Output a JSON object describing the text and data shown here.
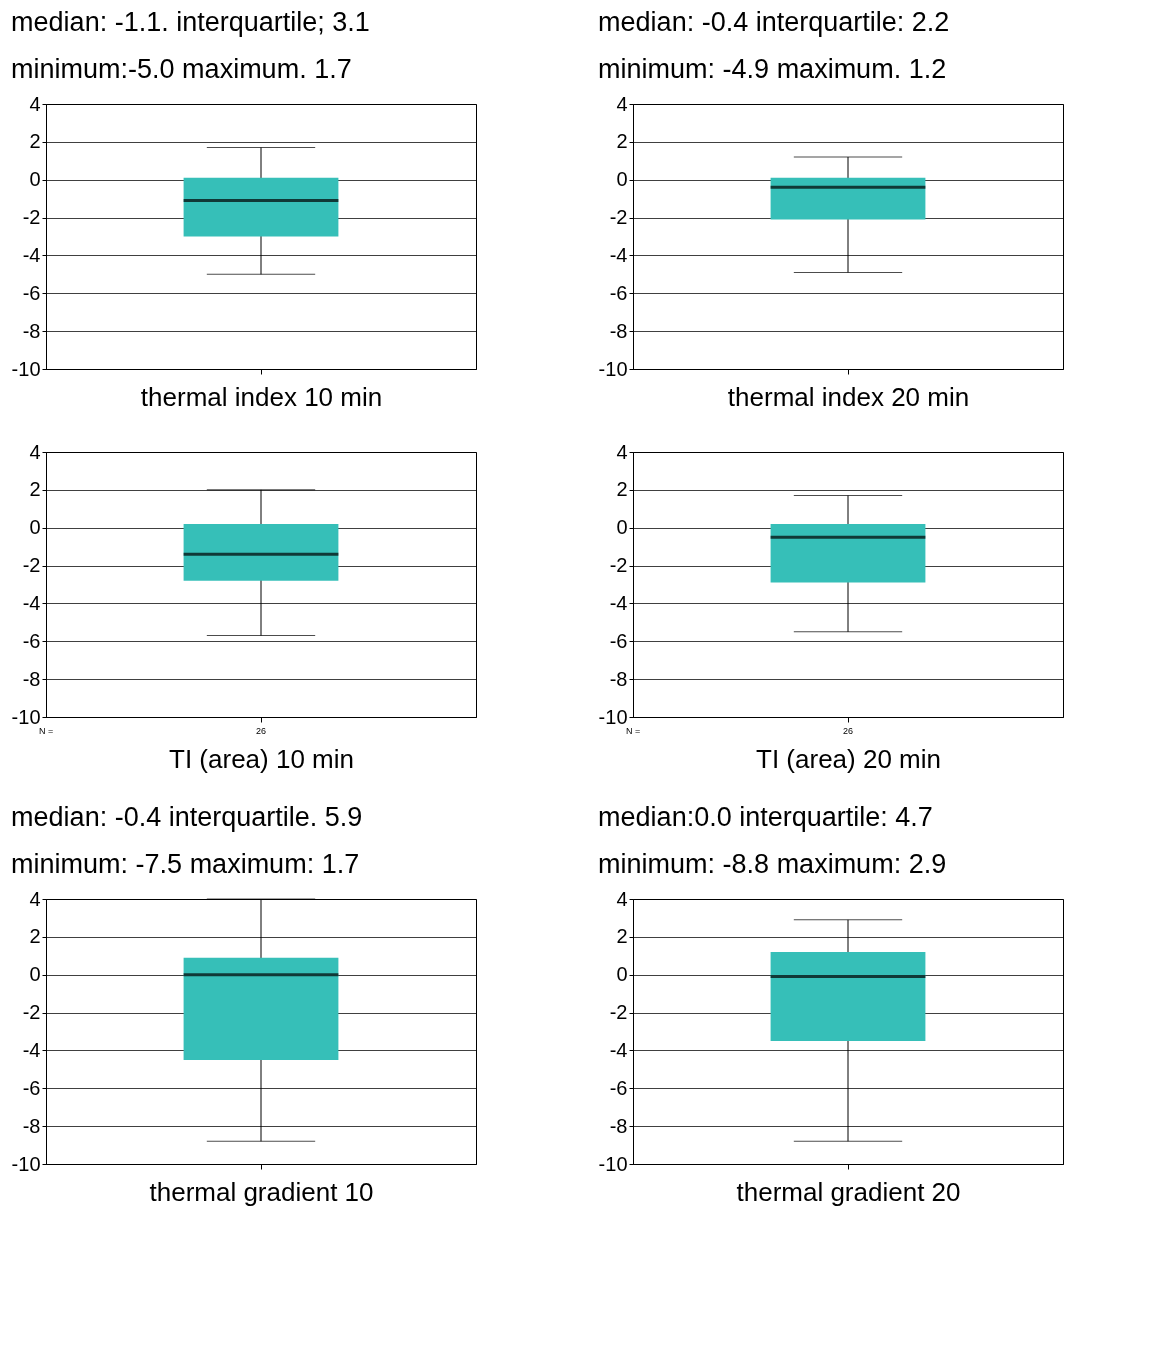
{
  "chart_data": [
    {
      "type": "box",
      "title": "median: -1.1. interquartile; 3.1",
      "subtitle": "minimum:-5.0 maximum. 1.7",
      "xlabel": "thermal index 10 min",
      "categories": [
        null
      ],
      "color": "#36bfb8",
      "boxes": [
        {
          "low": -5.0,
          "q1": -3.0,
          "median": -1.1,
          "q3": 0.1,
          "high": 1.7
        }
      ],
      "ylim": [
        -10,
        4
      ],
      "yticks": [
        -10,
        -8,
        -6,
        -4,
        -2,
        0,
        2,
        4
      ],
      "grid": "y"
    },
    {
      "type": "box",
      "title": "median: -0.4  interquartile: 2.2",
      "subtitle": "minimum: -4.9  maximum. 1.2",
      "xlabel": "thermal index 20 min",
      "categories": [
        null
      ],
      "color": "#36bfb8",
      "boxes": [
        {
          "low": -4.9,
          "q1": -2.1,
          "median": -0.4,
          "q3": 0.1,
          "high": 1.2
        }
      ],
      "ylim": [
        -10,
        4
      ],
      "yticks": [
        -10,
        -8,
        -6,
        -4,
        -2,
        0,
        2,
        4
      ],
      "grid": "y"
    },
    {
      "type": "box",
      "xlabel": "TI (area) 10 min",
      "categories": [
        null
      ],
      "color": "#36bfb8",
      "boxes": [
        {
          "low": -5.7,
          "q1": -2.8,
          "median": -1.4,
          "q3": 0.2,
          "high": 2.0
        }
      ],
      "ylim": [
        -10,
        4
      ],
      "yticks": [
        -10,
        -8,
        -6,
        -4,
        -2,
        0,
        2,
        4
      ],
      "grid": "y",
      "annotations": [
        "N =",
        "26"
      ]
    },
    {
      "type": "box",
      "xlabel": "TI (area) 20 min",
      "categories": [
        null
      ],
      "color": "#36bfb8",
      "boxes": [
        {
          "low": -5.5,
          "q1": -2.9,
          "median": -0.5,
          "q3": 0.2,
          "high": 1.7
        }
      ],
      "ylim": [
        -10,
        4
      ],
      "yticks": [
        -10,
        -8,
        -6,
        -4,
        -2,
        0,
        2,
        4
      ],
      "grid": "y",
      "annotations": [
        "N =",
        "26"
      ]
    },
    {
      "type": "box",
      "title": "median: -0.4  interquartile. 5.9",
      "subtitle": "minimum: -7.5  maximum: 1.7",
      "xlabel": "thermal gradient 10",
      "categories": [
        null
      ],
      "color": "#36bfb8",
      "boxes": [
        {
          "low": -8.8,
          "q1": -4.5,
          "median": 0.0,
          "q3": 0.9,
          "high": 4.0
        }
      ],
      "ylim": [
        -10,
        4
      ],
      "yticks": [
        -10,
        -8,
        -6,
        -4,
        -2,
        0,
        2,
        4
      ],
      "grid": "y"
    },
    {
      "type": "box",
      "title": "median:0.0  interquartile: 4.7",
      "subtitle": "minimum: -8.8 maximum: 2.9",
      "xlabel": "thermal gradient 20",
      "categories": [
        null
      ],
      "color": "#36bfb8",
      "boxes": [
        {
          "low": -8.8,
          "q1": -3.5,
          "median": -0.1,
          "q3": 1.2,
          "high": 2.9
        }
      ],
      "ylim": [
        -10,
        4
      ],
      "yticks": [
        -10,
        -8,
        -6,
        -4,
        -2,
        0,
        2,
        4
      ],
      "grid": "y"
    }
  ]
}
